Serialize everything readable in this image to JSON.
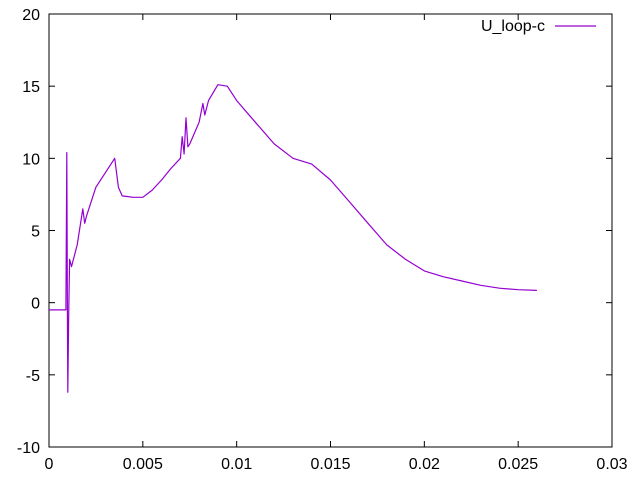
{
  "chart_data": {
    "type": "line",
    "title": "",
    "xlabel": "",
    "ylabel": "",
    "xlim": [
      0,
      0.03
    ],
    "ylim": [
      -10,
      20
    ],
    "xticks": [
      0,
      0.005,
      0.01,
      0.015,
      0.02,
      0.025,
      0.03
    ],
    "xtick_labels": [
      "0",
      "0.005",
      "0.01",
      "0.015",
      "0.02",
      "0.025",
      "0.03"
    ],
    "yticks": [
      -10,
      -5,
      0,
      5,
      10,
      15,
      20
    ],
    "ytick_labels": [
      "-10",
      "-5",
      "0",
      "5",
      "10",
      "15",
      "20"
    ],
    "grid": false,
    "legend_placement": "top-right",
    "series": [
      {
        "name": "U_loop-c",
        "color": "#9400d3",
        "x": [
          0,
          0.0005,
          0.0009,
          0.00095,
          0.00098,
          0.001,
          0.00105,
          0.0011,
          0.0012,
          0.0015,
          0.0018,
          0.0019,
          0.002,
          0.0025,
          0.003,
          0.0035,
          0.0037,
          0.0039,
          0.0045,
          0.005,
          0.0055,
          0.006,
          0.0065,
          0.007,
          0.0071,
          0.0072,
          0.0073,
          0.0074,
          0.0075,
          0.008,
          0.0082,
          0.0083,
          0.0085,
          0.009,
          0.0095,
          0.01,
          0.011,
          0.012,
          0.013,
          0.014,
          0.015,
          0.016,
          0.017,
          0.018,
          0.019,
          0.02,
          0.021,
          0.022,
          0.023,
          0.024,
          0.025,
          0.026
        ],
        "y": [
          -0.5,
          -0.5,
          -0.5,
          10.4,
          -0.5,
          -6.2,
          -0.8,
          3.0,
          2.5,
          4.0,
          6.5,
          5.5,
          6.0,
          8.0,
          9.0,
          10.0,
          8.0,
          7.4,
          7.3,
          7.3,
          7.8,
          8.5,
          9.3,
          10.0,
          11.5,
          10.3,
          12.8,
          10.8,
          11.0,
          12.5,
          13.8,
          13.0,
          14.0,
          15.1,
          15.0,
          14.0,
          12.5,
          11.0,
          10.0,
          9.6,
          8.5,
          7.0,
          5.5,
          4.0,
          3.0,
          2.2,
          1.8,
          1.5,
          1.2,
          1.0,
          0.9,
          0.85
        ]
      }
    ]
  }
}
